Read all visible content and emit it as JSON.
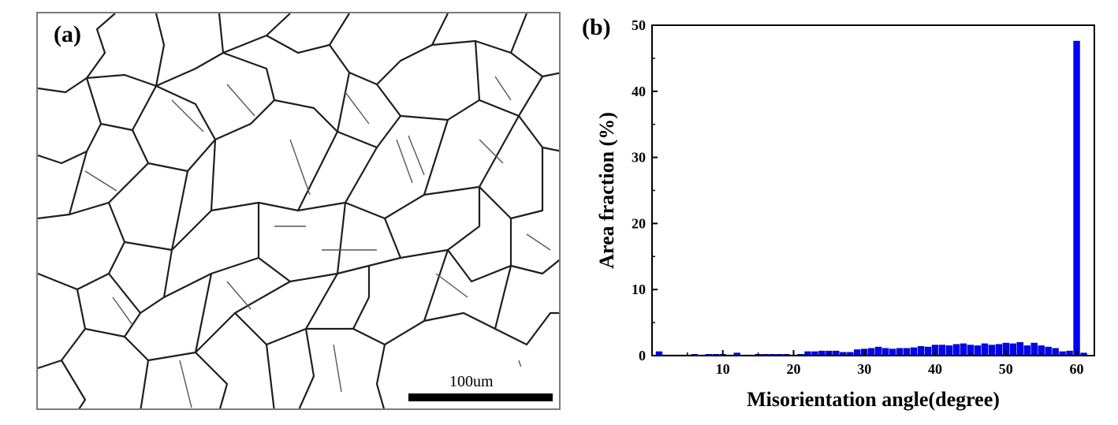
{
  "panel_a": {
    "label": "(a)",
    "scale_bar_text": "100um"
  },
  "panel_b": {
    "label": "(b)"
  },
  "chart_data": {
    "type": "bar",
    "xlabel": "Misorientation angle(degree)",
    "ylabel": "Area fraction (%)",
    "xlim": [
      0,
      62.5
    ],
    "ylim": [
      0,
      50
    ],
    "xticks": [
      10,
      20,
      30,
      40,
      50,
      60
    ],
    "yticks": [
      0,
      10,
      20,
      30,
      40,
      50
    ],
    "bar_color": "#0000ff",
    "bin_width": 1,
    "x": [
      1,
      2,
      3,
      4,
      5,
      6,
      7,
      8,
      9,
      10,
      11,
      12,
      13,
      14,
      15,
      16,
      17,
      18,
      19,
      20,
      21,
      22,
      23,
      24,
      25,
      26,
      27,
      28,
      29,
      30,
      31,
      32,
      33,
      34,
      35,
      36,
      37,
      38,
      39,
      40,
      41,
      42,
      43,
      44,
      45,
      46,
      47,
      48,
      49,
      50,
      51,
      52,
      53,
      54,
      55,
      56,
      57,
      58,
      59,
      60,
      61
    ],
    "values": [
      0.6,
      0.1,
      0.1,
      0.1,
      0.1,
      0.2,
      0.1,
      0.2,
      0.2,
      0.2,
      0.1,
      0.4,
      0.1,
      0.1,
      0.2,
      0.2,
      0.2,
      0.2,
      0.2,
      0.1,
      0.2,
      0.6,
      0.6,
      0.7,
      0.7,
      0.7,
      0.5,
      0.5,
      0.9,
      1.0,
      1.1,
      1.3,
      1.1,
      1.0,
      1.1,
      1.1,
      1.2,
      1.4,
      1.3,
      1.6,
      1.6,
      1.5,
      1.7,
      1.8,
      1.6,
      1.5,
      1.8,
      1.6,
      1.7,
      1.9,
      1.8,
      2.0,
      1.5,
      1.9,
      1.5,
      1.3,
      1.1,
      0.6,
      0.7,
      47.6,
      0.4
    ]
  }
}
